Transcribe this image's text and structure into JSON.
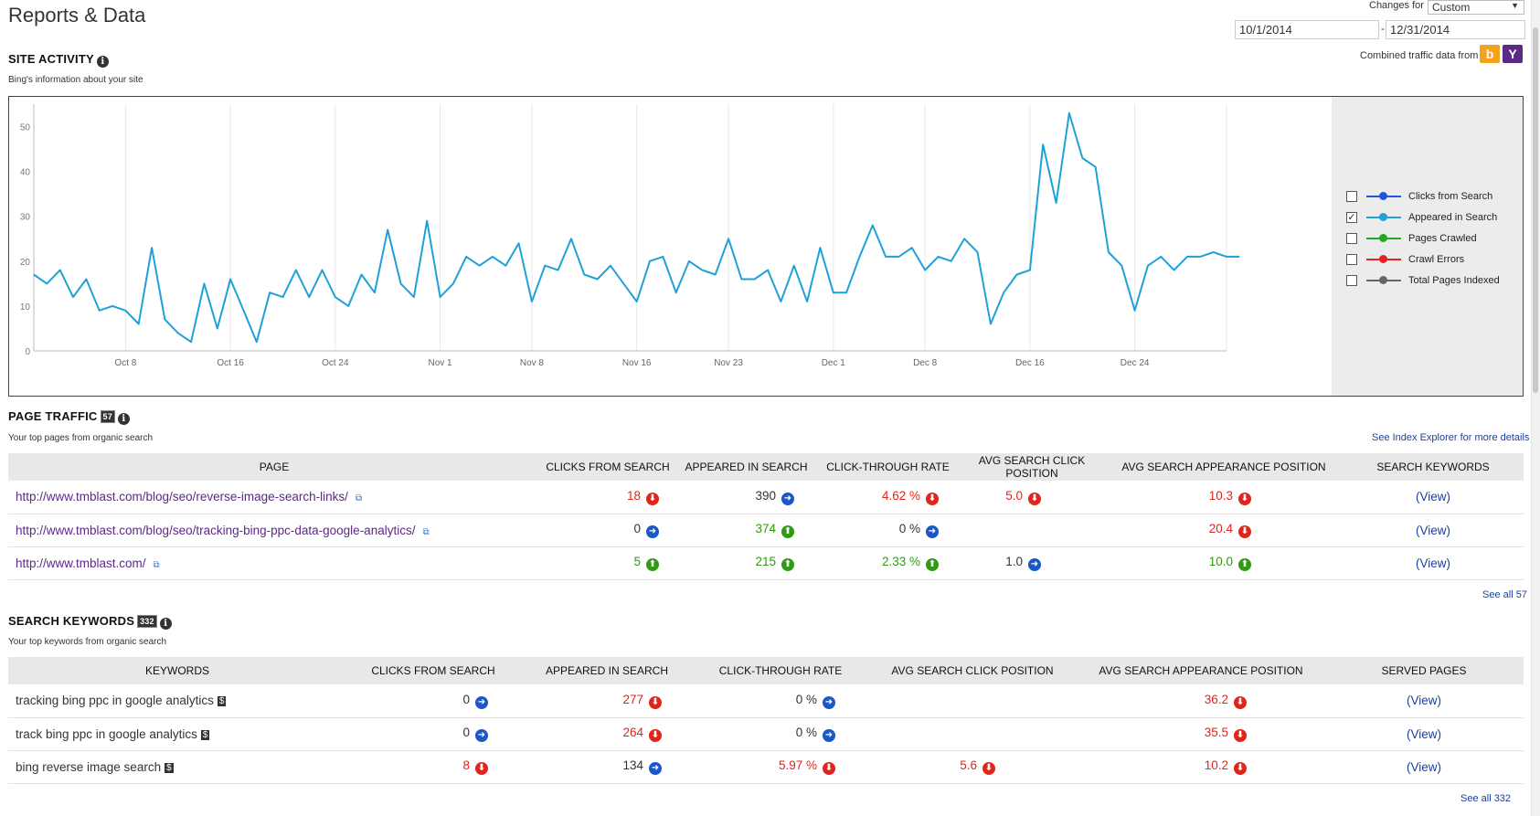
{
  "header": {
    "title": "Reports & Data",
    "changes_label": "Changes for",
    "changes_value": "Custom",
    "date_from": "10/1/2014",
    "date_dash": "-",
    "date_to": "12/31/2014",
    "combined_label": "Combined traffic data from",
    "bing_glyph": "b",
    "yahoo_glyph": "Y"
  },
  "site_activity": {
    "title": "SITE ACTIVITY",
    "subtitle": "Bing's information about your site",
    "info_glyph": "i"
  },
  "chart_data": {
    "type": "line",
    "title": "",
    "xlabel": "",
    "ylabel": "",
    "ylim": [
      0,
      55
    ],
    "yticks": [
      0,
      10,
      20,
      30,
      40,
      50
    ],
    "xlim": [
      0,
      91
    ],
    "xticks": [
      {
        "x": 7,
        "label": "Oct 8"
      },
      {
        "x": 15,
        "label": "Oct 16"
      },
      {
        "x": 23,
        "label": "Oct 24"
      },
      {
        "x": 31,
        "label": "Nov 1"
      },
      {
        "x": 38,
        "label": "Nov 8"
      },
      {
        "x": 46,
        "label": "Nov 16"
      },
      {
        "x": 53,
        "label": "Nov 23"
      },
      {
        "x": 61,
        "label": "Dec 1"
      },
      {
        "x": 68,
        "label": "Dec 8"
      },
      {
        "x": 76,
        "label": "Dec 16"
      },
      {
        "x": 84,
        "label": "Dec 24"
      }
    ],
    "grid": true,
    "legend": "right",
    "series": [
      {
        "name": "Appeared in Search",
        "color": "#1fa1d8",
        "values": [
          17,
          15,
          18,
          12,
          16,
          9,
          10,
          9,
          6,
          23,
          7,
          4,
          2,
          15,
          5,
          16,
          9,
          2,
          13,
          12,
          18,
          12,
          18,
          12,
          10,
          17,
          13,
          27,
          15,
          12,
          29,
          12,
          15,
          21,
          19,
          21,
          19,
          24,
          11,
          19,
          18,
          25,
          17,
          16,
          19,
          15,
          11,
          20,
          21,
          13,
          20,
          18,
          17,
          25,
          16,
          16,
          18,
          11,
          19,
          11,
          23,
          13,
          13,
          21,
          28,
          21,
          21,
          23,
          18,
          21,
          20,
          25,
          22,
          6,
          13,
          17,
          18,
          46,
          33,
          53,
          43,
          41,
          22,
          19,
          9,
          19,
          21,
          18,
          21,
          21,
          22,
          21,
          21
        ]
      }
    ]
  },
  "legend": {
    "items": [
      {
        "label": "Clicks from Search",
        "color": "#2255dd",
        "checked": ""
      },
      {
        "label": "Appeared in Search",
        "color": "#1fa1d8",
        "checked": "✓"
      },
      {
        "label": "Pages Crawled",
        "color": "#22aa22",
        "checked": ""
      },
      {
        "label": "Crawl Errors",
        "color": "#e52222",
        "checked": ""
      },
      {
        "label": "Total Pages Indexed",
        "color": "#666666",
        "checked": ""
      }
    ]
  },
  "page_traffic": {
    "title": "PAGE TRAFFIC",
    "count": "57",
    "subtitle": "Your top pages from organic search",
    "more_link": "See Index Explorer for more details",
    "see_all": "See all 57",
    "headers": [
      "PAGE",
      "CLICKS FROM SEARCH",
      "APPEARED IN SEARCH",
      "CLICK-THROUGH RATE",
      "AVG SEARCH CLICK POSITION",
      "AVG SEARCH APPEARANCE POSITION",
      "SEARCH KEYWORDS"
    ],
    "rows": [
      {
        "page": "http://www.tmblast.com/blog/seo/reverse-image-search-links/",
        "clicks": "18",
        "appeared": "390",
        "ctr": "4.62 %",
        "click_pos": "5.0",
        "appear_pos": "10.3",
        "action": "(View)"
      },
      {
        "page": "http://www.tmblast.com/blog/seo/tracking-bing-ppc-data-google-analytics/",
        "clicks": "0",
        "appeared": "374",
        "ctr": "0 %",
        "click_pos": "",
        "appear_pos": "20.4",
        "action": "(View)"
      },
      {
        "page": "http://www.tmblast.com/",
        "clicks": "5",
        "appeared": "215",
        "ctr": "2.33 %",
        "click_pos": "1.0",
        "appear_pos": "10.0",
        "action": "(View)"
      }
    ]
  },
  "search_keywords": {
    "title": "SEARCH KEYWORDS",
    "count": "332",
    "subtitle": "Your top keywords from organic search",
    "see_all": "See all 332",
    "headers": [
      "KEYWORDS",
      "CLICKS FROM SEARCH",
      "APPEARED IN SEARCH",
      "CLICK-THROUGH RATE",
      "AVG SEARCH CLICK POSITION",
      "AVG SEARCH APPEARANCE POSITION",
      "SERVED PAGES"
    ],
    "rows": [
      {
        "keyword": "tracking bing ppc in google analytics",
        "clicks": "0",
        "appeared": "277",
        "ctr": "0 %",
        "click_pos": "",
        "appear_pos": "36.2",
        "action": "(View)"
      },
      {
        "keyword": "track bing ppc in google analytics",
        "clicks": "0",
        "appeared": "264",
        "ctr": "0 %",
        "click_pos": "",
        "appear_pos": "35.5",
        "action": "(View)"
      },
      {
        "keyword": "bing reverse image search",
        "clicks": "8",
        "appeared": "134",
        "ctr": "5.97 %",
        "click_pos": "5.6",
        "appear_pos": "10.2",
        "action": "(View)"
      }
    ]
  },
  "glyphs": {
    "dollar": "$",
    "arrow_down": "⬇",
    "arrow_up": "⬆",
    "arrow_right": "➜",
    "external": "⧉",
    "select_arrow": "▼"
  },
  "icons": {
    "down": "down-arrow-icon",
    "up": "up-arrow-icon",
    "right": "right-arrow-icon"
  }
}
